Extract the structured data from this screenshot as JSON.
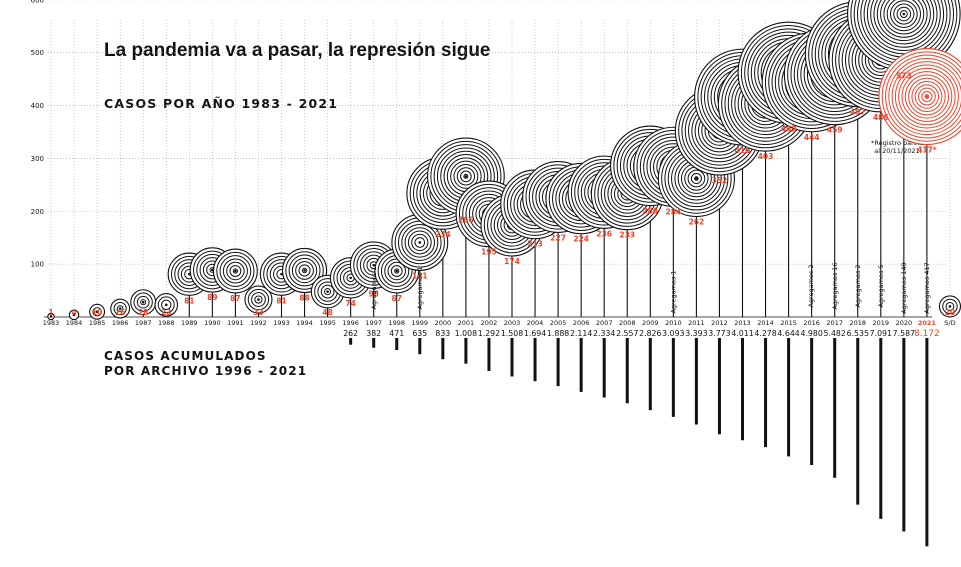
{
  "title": "La pandemia va a pasar, la represión sigue",
  "subtitle": "CASOS POR AÑO 1983 - 2021",
  "cumulative_label_line1": "CASOS ACUMULADOS",
  "cumulative_label_line2": "POR ARCHIVO 1996 - 2021",
  "note": "*Registro parcial al 20/11/2021.",
  "colors": {
    "ink": "#111111",
    "accent": "#e8462c",
    "grid": "#9a9a9a"
  },
  "chart_data": {
    "type": "scatter",
    "title": "La pandemia va a pasar, la represión sigue",
    "subtitle": "CASOS POR AÑO 1983 - 2021",
    "ylim": [
      0,
      600
    ],
    "yticks": [
      100,
      200,
      300,
      400,
      500,
      600
    ],
    "grid": true,
    "categories": [
      "1983",
      "1984",
      "1985",
      "1986",
      "1987",
      "1988",
      "1989",
      "1990",
      "1991",
      "1992",
      "1993",
      "1994",
      "1995",
      "1996",
      "1997",
      "1998",
      "1999",
      "2000",
      "2001",
      "2002",
      "2003",
      "2004",
      "2005",
      "2006",
      "2007",
      "2008",
      "2009",
      "2010",
      "2011",
      "2012",
      "2013",
      "2014",
      "2015",
      "2016",
      "2017",
      "2018",
      "2019",
      "2020",
      "2021",
      "S/D"
    ],
    "values": [
      1,
      4,
      10,
      16,
      28,
      23,
      81,
      89,
      87,
      33,
      81,
      88,
      48,
      74,
      98,
      87,
      141,
      234,
      266,
      195,
      174,
      213,
      227,
      224,
      236,
      233,
      286,
      284,
      262,
      352,
      416,
      403,
      462,
      444,
      459,
      497,
      486,
      573,
      417,
      20
    ],
    "value_labels": [
      "1",
      "4",
      "10",
      "16",
      "28",
      "23",
      "81",
      "89",
      "87",
      "33",
      "81",
      "88",
      "48",
      "74",
      "98",
      "87",
      "141",
      "234",
      "266",
      "195",
      "174",
      "213",
      "227",
      "224",
      "236",
      "233",
      "286",
      "284",
      "262",
      "352",
      "416",
      "403",
      "462",
      "444",
      "459",
      "497",
      "486",
      "573",
      "417*",
      "20"
    ],
    "agregamos": [
      {
        "category": "1997",
        "label": "Agregamos 1"
      },
      {
        "category": "1999",
        "label": "Agregamos 1"
      },
      {
        "category": "2010",
        "label": "Agregamos 1"
      },
      {
        "category": "2016",
        "label": "Agregamos 2"
      },
      {
        "category": "2016b",
        "label": "Agregamos 16"
      },
      {
        "category": "2017",
        "label": "Agregamos 2"
      },
      {
        "category": "2018",
        "label": "Agregamos 5"
      },
      {
        "category": "2020",
        "label": "Agregamos 140"
      },
      {
        "category": "2021",
        "label": "Agregamos 417"
      }
    ],
    "cumulative": {
      "label": "CASOS ACUMULADOS POR ARCHIVO 1996 - 2021",
      "years": [
        "1996",
        "1997",
        "1998",
        "1999",
        "2000",
        "2001",
        "2002",
        "2003",
        "2004",
        "2005",
        "2006",
        "2007",
        "2008",
        "2009",
        "2010",
        "2011",
        "2012",
        "2013",
        "2014",
        "2015",
        "2016",
        "2017",
        "2018",
        "2019",
        "2020",
        "2021"
      ],
      "values": [
        262,
        382,
        471,
        635,
        833,
        1008,
        1292,
        1508,
        1694,
        1888,
        2114,
        2334,
        2557,
        2826,
        3093,
        3393,
        3773,
        4011,
        4278,
        4644,
        4980,
        5482,
        6535,
        7091,
        7587,
        8172
      ],
      "labels": [
        "262",
        "382",
        "471",
        "635",
        "833",
        "1.008",
        "1.292",
        "1.508",
        "1.694",
        "1.888",
        "2.114",
        "2.334",
        "2.557",
        "2.826",
        "3.093",
        "3.393",
        "3.773",
        "4.011",
        "4.278",
        "4.644",
        "4.980",
        "5.482",
        "6.535",
        "7.091",
        "7.587",
        "8.172"
      ]
    }
  }
}
